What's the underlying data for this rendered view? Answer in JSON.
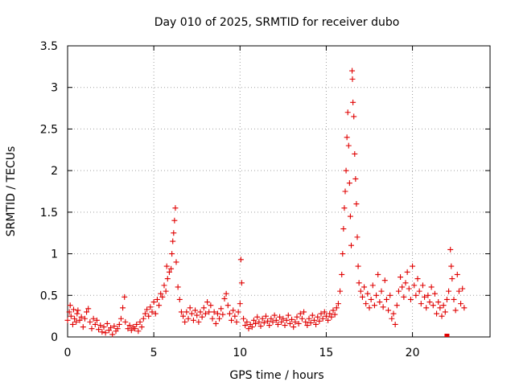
{
  "chart_data": {
    "type": "scatter",
    "title": "Day 010 of 2025, SRMTID for receiver dubo",
    "xlabel": "GPS time / hours",
    "ylabel": "SRMTID / TECUs",
    "xlim": [
      0,
      24.5
    ],
    "ylim": [
      0,
      3.5
    ],
    "xticks": [
      0,
      5,
      10,
      15,
      20
    ],
    "xtick_labels": [
      "0",
      "5",
      "10",
      "15",
      "20"
    ],
    "yticks": [
      0,
      0.5,
      1,
      1.5,
      2,
      2.5,
      3,
      3.5
    ],
    "ytick_labels": [
      "0",
      "0.5",
      "1",
      "1.5",
      "2",
      "2.5",
      "3",
      "3.5"
    ],
    "grid": true,
    "marker": "plus",
    "color": "#e00000",
    "series": [
      {
        "name": "SRMTID",
        "points": [
          [
            0.0,
            0.2
          ],
          [
            0.1,
            0.3
          ],
          [
            0.15,
            0.38
          ],
          [
            0.2,
            0.25
          ],
          [
            0.3,
            0.15
          ],
          [
            0.35,
            0.33
          ],
          [
            0.4,
            0.22
          ],
          [
            0.5,
            0.18
          ],
          [
            0.55,
            0.28
          ],
          [
            0.6,
            0.32
          ],
          [
            0.7,
            0.2
          ],
          [
            0.8,
            0.24
          ],
          [
            0.9,
            0.12
          ],
          [
            1.0,
            0.22
          ],
          [
            1.1,
            0.3
          ],
          [
            1.2,
            0.34
          ],
          [
            1.3,
            0.18
          ],
          [
            1.4,
            0.1
          ],
          [
            1.5,
            0.22
          ],
          [
            1.6,
            0.15
          ],
          [
            1.7,
            0.2
          ],
          [
            1.8,
            0.09
          ],
          [
            1.9,
            0.14
          ],
          [
            2.0,
            0.06
          ],
          [
            2.1,
            0.12
          ],
          [
            2.2,
            0.05
          ],
          [
            2.3,
            0.16
          ],
          [
            2.4,
            0.08
          ],
          [
            2.5,
            0.11
          ],
          [
            2.6,
            0.03
          ],
          [
            2.7,
            0.13
          ],
          [
            2.8,
            0.07
          ],
          [
            2.9,
            0.1
          ],
          [
            3.0,
            0.15
          ],
          [
            3.1,
            0.22
          ],
          [
            3.2,
            0.35
          ],
          [
            3.3,
            0.48
          ],
          [
            3.35,
            0.18
          ],
          [
            3.5,
            0.1
          ],
          [
            3.6,
            0.14
          ],
          [
            3.7,
            0.08
          ],
          [
            3.8,
            0.12
          ],
          [
            3.9,
            0.1
          ],
          [
            4.0,
            0.15
          ],
          [
            4.1,
            0.07
          ],
          [
            4.2,
            0.18
          ],
          [
            4.3,
            0.12
          ],
          [
            4.4,
            0.22
          ],
          [
            4.5,
            0.28
          ],
          [
            4.6,
            0.33
          ],
          [
            4.7,
            0.25
          ],
          [
            4.8,
            0.36
          ],
          [
            4.9,
            0.3
          ],
          [
            5.0,
            0.42
          ],
          [
            5.1,
            0.28
          ],
          [
            5.2,
            0.45
          ],
          [
            5.3,
            0.38
          ],
          [
            5.4,
            0.52
          ],
          [
            5.5,
            0.48
          ],
          [
            5.6,
            0.62
          ],
          [
            5.7,
            0.55
          ],
          [
            5.75,
            0.85
          ],
          [
            5.8,
            0.7
          ],
          [
            5.9,
            0.78
          ],
          [
            6.0,
            0.82
          ],
          [
            6.05,
            1.0
          ],
          [
            6.1,
            1.15
          ],
          [
            6.15,
            1.25
          ],
          [
            6.2,
            1.4
          ],
          [
            6.25,
            1.55
          ],
          [
            6.3,
            0.9
          ],
          [
            6.4,
            0.6
          ],
          [
            6.5,
            0.45
          ],
          [
            6.6,
            0.3
          ],
          [
            6.7,
            0.25
          ],
          [
            6.8,
            0.18
          ],
          [
            6.9,
            0.3
          ],
          [
            7.0,
            0.22
          ],
          [
            7.1,
            0.35
          ],
          [
            7.2,
            0.28
          ],
          [
            7.3,
            0.2
          ],
          [
            7.4,
            0.32
          ],
          [
            7.5,
            0.26
          ],
          [
            7.6,
            0.18
          ],
          [
            7.7,
            0.3
          ],
          [
            7.8,
            0.24
          ],
          [
            7.9,
            0.35
          ],
          [
            8.0,
            0.28
          ],
          [
            8.1,
            0.42
          ],
          [
            8.2,
            0.3
          ],
          [
            8.3,
            0.38
          ],
          [
            8.4,
            0.22
          ],
          [
            8.5,
            0.3
          ],
          [
            8.6,
            0.16
          ],
          [
            8.7,
            0.28
          ],
          [
            8.8,
            0.22
          ],
          [
            8.9,
            0.34
          ],
          [
            9.0,
            0.27
          ],
          [
            9.1,
            0.46
          ],
          [
            9.2,
            0.52
          ],
          [
            9.3,
            0.38
          ],
          [
            9.4,
            0.28
          ],
          [
            9.5,
            0.2
          ],
          [
            9.6,
            0.32
          ],
          [
            9.7,
            0.25
          ],
          [
            9.8,
            0.18
          ],
          [
            9.9,
            0.3
          ],
          [
            10.0,
            0.4
          ],
          [
            10.05,
            0.93
          ],
          [
            10.1,
            0.65
          ],
          [
            10.2,
            0.22
          ],
          [
            10.3,
            0.14
          ],
          [
            10.4,
            0.18
          ],
          [
            10.5,
            0.1
          ],
          [
            10.6,
            0.15
          ],
          [
            10.7,
            0.12
          ],
          [
            10.8,
            0.2
          ],
          [
            10.9,
            0.16
          ],
          [
            11.0,
            0.24
          ],
          [
            11.1,
            0.18
          ],
          [
            11.2,
            0.13
          ],
          [
            11.3,
            0.22
          ],
          [
            11.4,
            0.17
          ],
          [
            11.5,
            0.25
          ],
          [
            11.6,
            0.19
          ],
          [
            11.7,
            0.14
          ],
          [
            11.8,
            0.22
          ],
          [
            11.9,
            0.18
          ],
          [
            12.0,
            0.26
          ],
          [
            12.1,
            0.2
          ],
          [
            12.2,
            0.15
          ],
          [
            12.3,
            0.24
          ],
          [
            12.4,
            0.18
          ],
          [
            12.5,
            0.22
          ],
          [
            12.6,
            0.14
          ],
          [
            12.7,
            0.2
          ],
          [
            12.8,
            0.26
          ],
          [
            12.9,
            0.16
          ],
          [
            13.0,
            0.21
          ],
          [
            13.1,
            0.12
          ],
          [
            13.2,
            0.18
          ],
          [
            13.3,
            0.24
          ],
          [
            13.4,
            0.16
          ],
          [
            13.5,
            0.28
          ],
          [
            13.6,
            0.22
          ],
          [
            13.7,
            0.3
          ],
          [
            13.8,
            0.18
          ],
          [
            13.9,
            0.14
          ],
          [
            14.0,
            0.22
          ],
          [
            14.1,
            0.17
          ],
          [
            14.2,
            0.26
          ],
          [
            14.3,
            0.2
          ],
          [
            14.4,
            0.15
          ],
          [
            14.5,
            0.24
          ],
          [
            14.6,
            0.19
          ],
          [
            14.7,
            0.28
          ],
          [
            14.8,
            0.22
          ],
          [
            14.9,
            0.3
          ],
          [
            15.0,
            0.25
          ],
          [
            15.1,
            0.2
          ],
          [
            15.2,
            0.28
          ],
          [
            15.3,
            0.24
          ],
          [
            15.4,
            0.32
          ],
          [
            15.5,
            0.27
          ],
          [
            15.6,
            0.35
          ],
          [
            15.7,
            0.4
          ],
          [
            15.8,
            0.55
          ],
          [
            15.9,
            0.75
          ],
          [
            15.95,
            1.0
          ],
          [
            16.0,
            1.3
          ],
          [
            16.05,
            1.55
          ],
          [
            16.1,
            1.75
          ],
          [
            16.15,
            2.0
          ],
          [
            16.2,
            2.4
          ],
          [
            16.25,
            2.7
          ],
          [
            16.3,
            2.3
          ],
          [
            16.35,
            1.85
          ],
          [
            16.4,
            1.45
          ],
          [
            16.45,
            1.1
          ],
          [
            16.5,
            3.2
          ],
          [
            16.52,
            3.1
          ],
          [
            16.55,
            2.82
          ],
          [
            16.6,
            2.65
          ],
          [
            16.65,
            2.2
          ],
          [
            16.7,
            1.9
          ],
          [
            16.75,
            1.6
          ],
          [
            16.8,
            1.2
          ],
          [
            16.85,
            0.85
          ],
          [
            16.9,
            0.65
          ],
          [
            17.0,
            0.55
          ],
          [
            17.1,
            0.48
          ],
          [
            17.2,
            0.6
          ],
          [
            17.3,
            0.4
          ],
          [
            17.4,
            0.52
          ],
          [
            17.5,
            0.35
          ],
          [
            17.6,
            0.45
          ],
          [
            17.7,
            0.62
          ],
          [
            17.8,
            0.38
          ],
          [
            17.9,
            0.5
          ],
          [
            18.0,
            0.75
          ],
          [
            18.1,
            0.42
          ],
          [
            18.2,
            0.55
          ],
          [
            18.3,
            0.36
          ],
          [
            18.4,
            0.68
          ],
          [
            18.5,
            0.45
          ],
          [
            18.6,
            0.32
          ],
          [
            18.7,
            0.5
          ],
          [
            18.8,
            0.22
          ],
          [
            18.9,
            0.28
          ],
          [
            19.0,
            0.15
          ],
          [
            19.1,
            0.38
          ],
          [
            19.2,
            0.55
          ],
          [
            19.3,
            0.72
          ],
          [
            19.4,
            0.6
          ],
          [
            19.5,
            0.48
          ],
          [
            19.6,
            0.65
          ],
          [
            19.7,
            0.78
          ],
          [
            19.8,
            0.58
          ],
          [
            19.9,
            0.45
          ],
          [
            20.0,
            0.85
          ],
          [
            20.1,
            0.62
          ],
          [
            20.2,
            0.5
          ],
          [
            20.3,
            0.7
          ],
          [
            20.4,
            0.55
          ],
          [
            20.5,
            0.4
          ],
          [
            20.6,
            0.62
          ],
          [
            20.7,
            0.48
          ],
          [
            20.8,
            0.35
          ],
          [
            20.9,
            0.5
          ],
          [
            21.0,
            0.42
          ],
          [
            21.1,
            0.6
          ],
          [
            21.2,
            0.38
          ],
          [
            21.3,
            0.52
          ],
          [
            21.4,
            0.28
          ],
          [
            21.5,
            0.42
          ],
          [
            21.6,
            0.35
          ],
          [
            21.7,
            0.25
          ],
          [
            21.8,
            0.38
          ],
          [
            21.9,
            0.3
          ],
          [
            22.0,
            0.45
          ],
          [
            22.1,
            0.55
          ],
          [
            22.2,
            1.05
          ],
          [
            22.25,
            0.85
          ],
          [
            22.3,
            0.7
          ],
          [
            22.4,
            0.45
          ],
          [
            22.5,
            0.32
          ],
          [
            22.6,
            0.75
          ],
          [
            22.7,
            0.55
          ],
          [
            22.8,
            0.4
          ],
          [
            22.9,
            0.58
          ],
          [
            23.0,
            0.35
          ]
        ]
      }
    ],
    "flat_markers": [
      [
        22.0,
        0.0
      ]
    ]
  }
}
